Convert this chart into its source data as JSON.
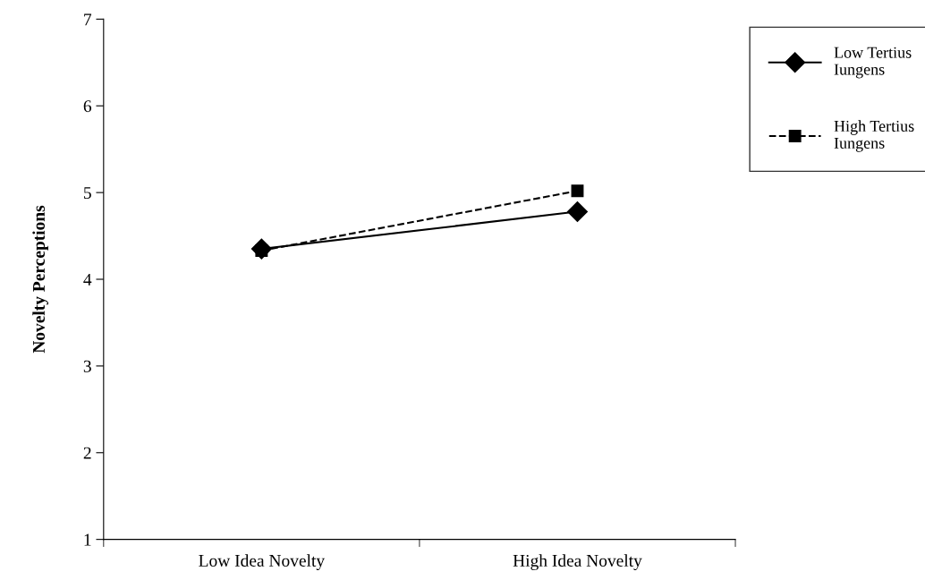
{
  "chart_data": {
    "type": "line",
    "ylabel": "Novelty Perceptions",
    "categories": [
      "Low Idea Novelty",
      "High Idea Novelty"
    ],
    "series": [
      {
        "name": "Low Tertius Iungens",
        "color": "#000000",
        "values": [
          4.35,
          4.78
        ],
        "marker": "diamond",
        "line_style": "solid"
      },
      {
        "name": "High Tertius Iungens",
        "color": "#000000",
        "values": [
          4.33,
          5.02
        ],
        "marker": "square",
        "line_style": "dashed"
      }
    ],
    "ylim": [
      1,
      7
    ],
    "yticks": [
      1,
      2,
      3,
      4,
      5,
      6,
      7
    ],
    "grid": false,
    "legend": "right"
  }
}
